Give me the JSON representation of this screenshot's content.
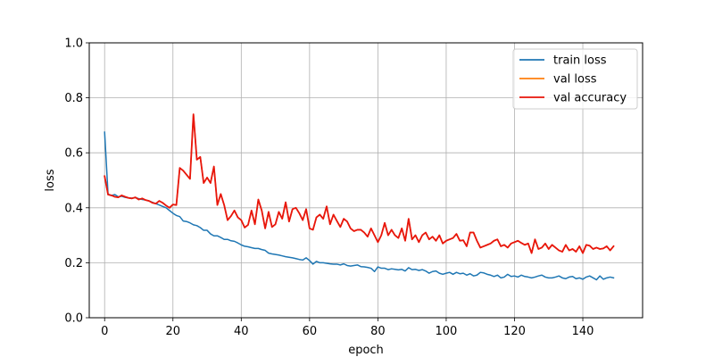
{
  "chart_data": {
    "type": "line",
    "xlabel": "epoch",
    "ylabel": "loss",
    "xlim": [
      -4.5,
      157.5
    ],
    "ylim": [
      0.0,
      1.0
    ],
    "xticks": [
      "0",
      "20",
      "40",
      "60",
      "80",
      "100",
      "120",
      "140"
    ],
    "yticks": [
      "0.0",
      "0.2",
      "0.4",
      "0.6",
      "0.8",
      "1.0"
    ],
    "grid": true,
    "legend_position": "top-right",
    "series": [
      {
        "name": "train loss",
        "color": "#1f77b4",
        "x": [
          0,
          1,
          2,
          3,
          4,
          5,
          6,
          7,
          8,
          9,
          10,
          11,
          12,
          13,
          14,
          15,
          16,
          17,
          18,
          19,
          20,
          21,
          22,
          23,
          24,
          25,
          26,
          27,
          28,
          29,
          30,
          31,
          32,
          33,
          34,
          35,
          36,
          37,
          38,
          39,
          40,
          41,
          42,
          43,
          44,
          45,
          46,
          47,
          48,
          49,
          50,
          51,
          52,
          53,
          54,
          55,
          56,
          57,
          58,
          59,
          60,
          61,
          62,
          63,
          64,
          65,
          66,
          67,
          68,
          69,
          70,
          71,
          72,
          73,
          74,
          75,
          76,
          77,
          78,
          79,
          80,
          81,
          82,
          83,
          84,
          85,
          86,
          87,
          88,
          89,
          90,
          91,
          92,
          93,
          94,
          95,
          96,
          97,
          98,
          99,
          100,
          101,
          102,
          103,
          104,
          105,
          106,
          107,
          108,
          109,
          110,
          111,
          112,
          113,
          114,
          115,
          116,
          117,
          118,
          119,
          120,
          121,
          122,
          123,
          124,
          125,
          126,
          127,
          128,
          129,
          130,
          131,
          132,
          133,
          134,
          135,
          136,
          137,
          138,
          139,
          140,
          141,
          142,
          143,
          144,
          145,
          146,
          147,
          148,
          149
        ],
        "y": [
          0.675,
          0.45,
          0.445,
          0.448,
          0.44,
          0.442,
          0.438,
          0.436,
          0.435,
          0.437,
          0.433,
          0.43,
          0.428,
          0.425,
          0.42,
          0.415,
          0.41,
          0.405,
          0.4,
          0.39,
          0.38,
          0.372,
          0.368,
          0.352,
          0.35,
          0.345,
          0.338,
          0.335,
          0.328,
          0.318,
          0.318,
          0.305,
          0.298,
          0.298,
          0.292,
          0.285,
          0.285,
          0.28,
          0.278,
          0.272,
          0.265,
          0.26,
          0.258,
          0.255,
          0.252,
          0.252,
          0.248,
          0.245,
          0.235,
          0.232,
          0.23,
          0.228,
          0.225,
          0.222,
          0.22,
          0.218,
          0.215,
          0.212,
          0.21,
          0.218,
          0.208,
          0.195,
          0.205,
          0.2,
          0.2,
          0.198,
          0.196,
          0.195,
          0.195,
          0.192,
          0.196,
          0.19,
          0.188,
          0.19,
          0.192,
          0.186,
          0.185,
          0.183,
          0.18,
          0.168,
          0.185,
          0.18,
          0.18,
          0.175,
          0.178,
          0.176,
          0.174,
          0.176,
          0.17,
          0.182,
          0.175,
          0.176,
          0.172,
          0.175,
          0.17,
          0.162,
          0.168,
          0.17,
          0.162,
          0.158,
          0.162,
          0.165,
          0.158,
          0.165,
          0.16,
          0.162,
          0.155,
          0.16,
          0.152,
          0.155,
          0.165,
          0.163,
          0.158,
          0.155,
          0.15,
          0.155,
          0.145,
          0.148,
          0.158,
          0.15,
          0.152,
          0.148,
          0.155,
          0.15,
          0.148,
          0.145,
          0.148,
          0.152,
          0.155,
          0.148,
          0.145,
          0.145,
          0.148,
          0.152,
          0.145,
          0.142,
          0.148,
          0.15,
          0.142,
          0.145,
          0.14,
          0.148,
          0.152,
          0.145,
          0.138,
          0.152,
          0.14,
          0.145,
          0.148,
          0.145
        ]
      },
      {
        "name": "val loss",
        "color": "#ff7f0e",
        "x": [
          0,
          1,
          2,
          3,
          4,
          5,
          6,
          7,
          8,
          9,
          10,
          11,
          12,
          13,
          14,
          15,
          16,
          17,
          18,
          19,
          20,
          21,
          22,
          23,
          24,
          25,
          26,
          27,
          28,
          29,
          30,
          31,
          32,
          33,
          34,
          35,
          36,
          37,
          38,
          39,
          40,
          41,
          42,
          43,
          44,
          45,
          46,
          47,
          48,
          49,
          50,
          51,
          52,
          53,
          54,
          55,
          56,
          57,
          58,
          59,
          60,
          61,
          62,
          63,
          64,
          65,
          66,
          67,
          68,
          69,
          70,
          71,
          72,
          73,
          74,
          75,
          76,
          77,
          78,
          79,
          80,
          81,
          82,
          83,
          84,
          85,
          86,
          87,
          88,
          89,
          90,
          91,
          92,
          93,
          94,
          95,
          96,
          97,
          98,
          99,
          100,
          101,
          102,
          103,
          104,
          105,
          106,
          107,
          108,
          109,
          110,
          111,
          112,
          113,
          114,
          115,
          116,
          117,
          118,
          119,
          120,
          121,
          122,
          123,
          124,
          125,
          126,
          127,
          128,
          129,
          130,
          131,
          132,
          133,
          134,
          135,
          136,
          137,
          138,
          139,
          140,
          141,
          142,
          143,
          144,
          145,
          146,
          147,
          148,
          149
        ],
        "y": [
          0.515,
          0.448,
          0.445,
          0.44,
          0.438,
          0.445,
          0.44,
          0.436,
          0.434,
          0.438,
          0.43,
          0.434,
          0.428,
          0.425,
          0.418,
          0.415,
          0.425,
          0.418,
          0.408,
          0.4,
          0.412,
          0.41,
          0.545,
          0.535,
          0.52,
          0.505,
          0.74,
          0.575,
          0.585,
          0.49,
          0.51,
          0.49,
          0.55,
          0.41,
          0.45,
          0.41,
          0.355,
          0.37,
          0.39,
          0.365,
          0.355,
          0.328,
          0.338,
          0.39,
          0.34,
          0.43,
          0.39,
          0.325,
          0.385,
          0.33,
          0.34,
          0.385,
          0.36,
          0.42,
          0.35,
          0.395,
          0.4,
          0.38,
          0.355,
          0.395,
          0.325,
          0.32,
          0.365,
          0.375,
          0.36,
          0.405,
          0.34,
          0.375,
          0.352,
          0.33,
          0.36,
          0.35,
          0.325,
          0.315,
          0.32,
          0.32,
          0.31,
          0.295,
          0.325,
          0.3,
          0.275,
          0.3,
          0.345,
          0.3,
          0.32,
          0.3,
          0.29,
          0.325,
          0.28,
          0.36,
          0.285,
          0.3,
          0.275,
          0.3,
          0.31,
          0.285,
          0.295,
          0.28,
          0.3,
          0.27,
          0.28,
          0.285,
          0.29,
          0.305,
          0.28,
          0.282,
          0.26,
          0.31,
          0.31,
          0.28,
          0.255,
          0.26,
          0.265,
          0.27,
          0.28,
          0.285,
          0.26,
          0.265,
          0.255,
          0.27,
          0.275,
          0.28,
          0.272,
          0.265,
          0.27,
          0.235,
          0.285,
          0.25,
          0.255,
          0.27,
          0.25,
          0.265,
          0.255,
          0.245,
          0.24,
          0.265,
          0.245,
          0.25,
          0.24,
          0.26,
          0.235,
          0.265,
          0.262,
          0.25,
          0.255,
          0.25,
          0.252,
          0.26,
          0.245,
          0.26
        ]
      },
      {
        "name": "val accuracy",
        "color": "#e8160c",
        "x": [
          0,
          1,
          2,
          3,
          4,
          5,
          6,
          7,
          8,
          9,
          10,
          11,
          12,
          13,
          14,
          15,
          16,
          17,
          18,
          19,
          20,
          21,
          22,
          23,
          24,
          25,
          26,
          27,
          28,
          29,
          30,
          31,
          32,
          33,
          34,
          35,
          36,
          37,
          38,
          39,
          40,
          41,
          42,
          43,
          44,
          45,
          46,
          47,
          48,
          49,
          50,
          51,
          52,
          53,
          54,
          55,
          56,
          57,
          58,
          59,
          60,
          61,
          62,
          63,
          64,
          65,
          66,
          67,
          68,
          69,
          70,
          71,
          72,
          73,
          74,
          75,
          76,
          77,
          78,
          79,
          80,
          81,
          82,
          83,
          84,
          85,
          86,
          87,
          88,
          89,
          90,
          91,
          92,
          93,
          94,
          95,
          96,
          97,
          98,
          99,
          100,
          101,
          102,
          103,
          104,
          105,
          106,
          107,
          108,
          109,
          110,
          111,
          112,
          113,
          114,
          115,
          116,
          117,
          118,
          119,
          120,
          121,
          122,
          123,
          124,
          125,
          126,
          127,
          128,
          129,
          130,
          131,
          132,
          133,
          134,
          135,
          136,
          137,
          138,
          139,
          140,
          141,
          142,
          143,
          144,
          145,
          146,
          147,
          148,
          149
        ],
        "y": [
          0.515,
          0.448,
          0.445,
          0.44,
          0.438,
          0.445,
          0.44,
          0.436,
          0.434,
          0.438,
          0.43,
          0.434,
          0.428,
          0.425,
          0.418,
          0.415,
          0.425,
          0.418,
          0.408,
          0.4,
          0.412,
          0.41,
          0.545,
          0.535,
          0.52,
          0.505,
          0.74,
          0.575,
          0.585,
          0.49,
          0.51,
          0.49,
          0.55,
          0.41,
          0.45,
          0.41,
          0.355,
          0.37,
          0.39,
          0.365,
          0.355,
          0.328,
          0.338,
          0.39,
          0.34,
          0.43,
          0.39,
          0.325,
          0.385,
          0.33,
          0.34,
          0.385,
          0.36,
          0.42,
          0.35,
          0.395,
          0.4,
          0.38,
          0.355,
          0.395,
          0.325,
          0.32,
          0.365,
          0.375,
          0.36,
          0.405,
          0.34,
          0.375,
          0.352,
          0.33,
          0.36,
          0.35,
          0.325,
          0.315,
          0.32,
          0.32,
          0.31,
          0.295,
          0.325,
          0.3,
          0.275,
          0.3,
          0.345,
          0.3,
          0.32,
          0.3,
          0.29,
          0.325,
          0.28,
          0.36,
          0.285,
          0.3,
          0.275,
          0.3,
          0.31,
          0.285,
          0.295,
          0.28,
          0.3,
          0.27,
          0.28,
          0.285,
          0.29,
          0.305,
          0.28,
          0.282,
          0.26,
          0.31,
          0.31,
          0.28,
          0.255,
          0.26,
          0.265,
          0.27,
          0.28,
          0.285,
          0.26,
          0.265,
          0.255,
          0.27,
          0.275,
          0.28,
          0.272,
          0.265,
          0.27,
          0.235,
          0.285,
          0.25,
          0.255,
          0.27,
          0.25,
          0.265,
          0.255,
          0.245,
          0.24,
          0.265,
          0.245,
          0.25,
          0.24,
          0.26,
          0.235,
          0.265,
          0.262,
          0.25,
          0.255,
          0.25,
          0.252,
          0.26,
          0.245,
          0.26
        ]
      }
    ]
  }
}
